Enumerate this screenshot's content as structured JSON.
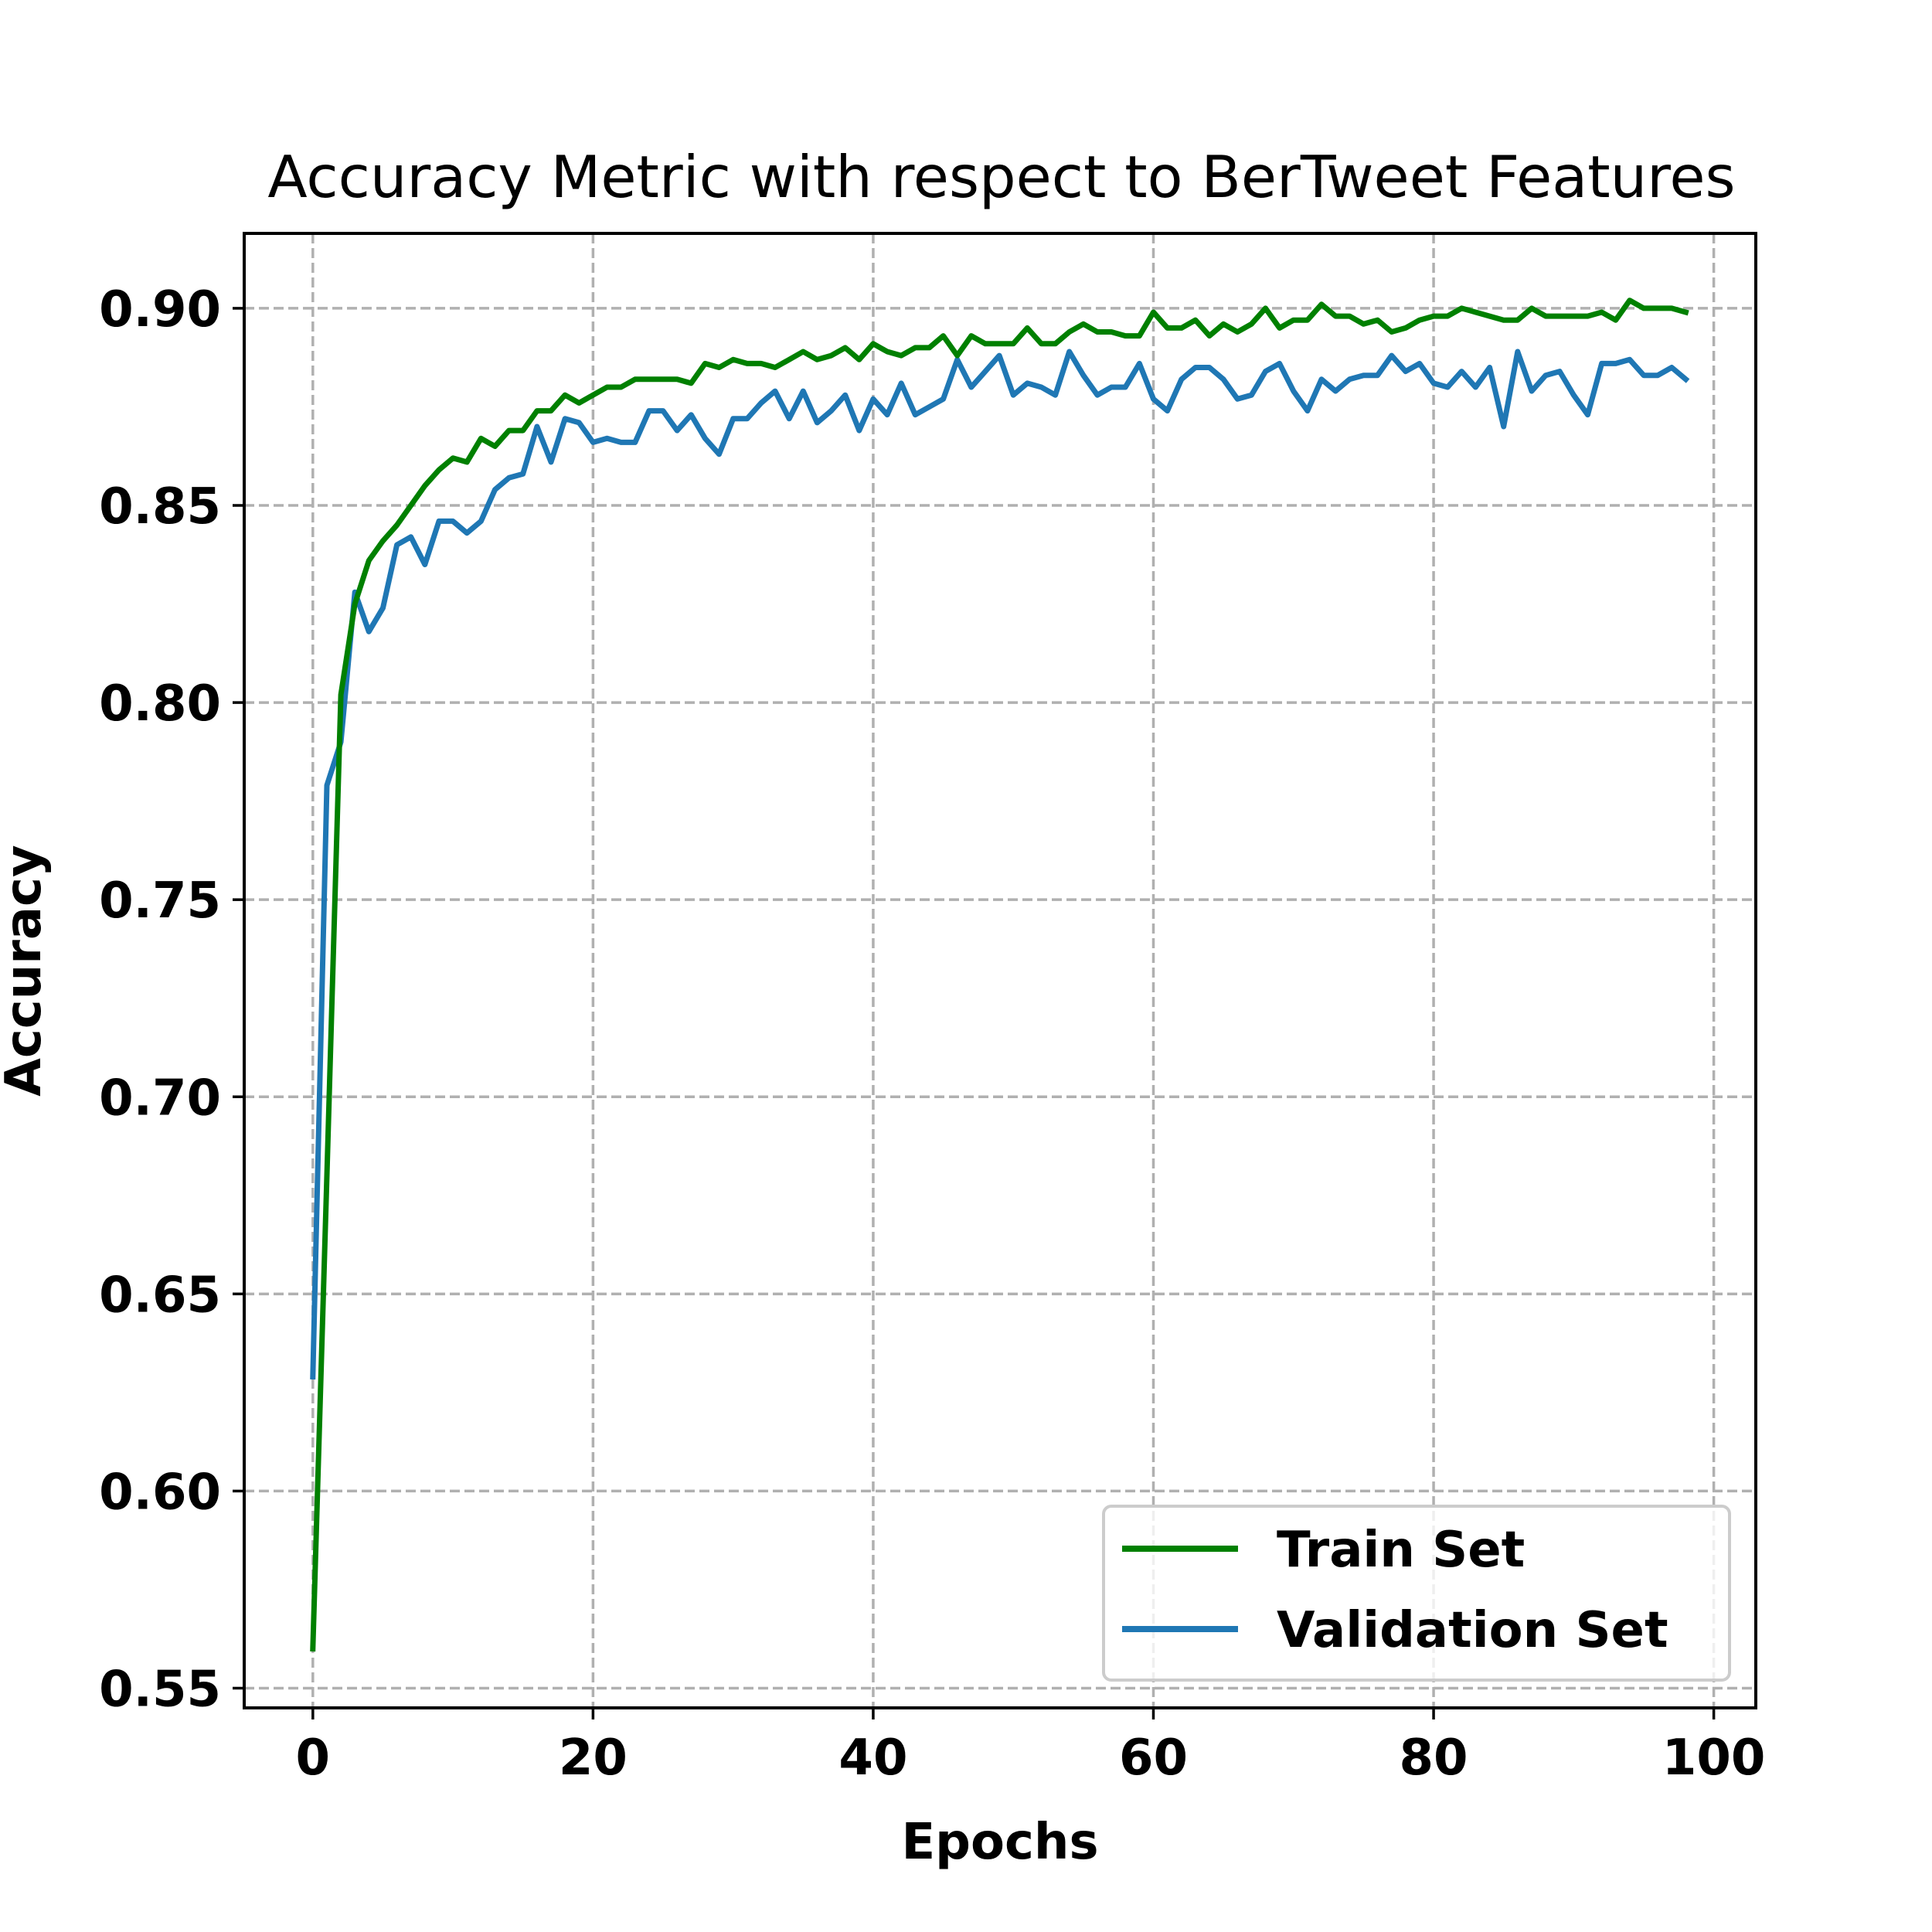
{
  "chart_data": {
    "type": "line",
    "title": "Accuracy Metric with respect to BerTweet Features",
    "xlabel": "Epochs",
    "ylabel": "Accuracy",
    "xlim": [
      -4.9,
      103
    ],
    "ylim": [
      0.545,
      0.919
    ],
    "xticks": [
      0,
      20,
      40,
      60,
      80,
      100
    ],
    "xtick_labels": [
      "0",
      "20",
      "40",
      "60",
      "80",
      "100"
    ],
    "yticks": [
      0.55,
      0.6,
      0.65,
      0.7,
      0.75,
      0.8,
      0.85,
      0.9
    ],
    "ytick_labels": [
      "0.55",
      "0.60",
      "0.65",
      "0.70",
      "0.75",
      "0.80",
      "0.85",
      "0.90"
    ],
    "grid": true,
    "legend_position": "bottom-right",
    "x": [
      0,
      1,
      2,
      3,
      4,
      5,
      6,
      7,
      8,
      9,
      10,
      11,
      12,
      13,
      14,
      15,
      16,
      17,
      18,
      19,
      20,
      21,
      22,
      23,
      24,
      25,
      26,
      27,
      28,
      29,
      30,
      31,
      32,
      33,
      34,
      35,
      36,
      37,
      38,
      39,
      40,
      41,
      42,
      43,
      44,
      45,
      46,
      47,
      48,
      49,
      50,
      51,
      52,
      53,
      54,
      55,
      56,
      57,
      58,
      59,
      60,
      61,
      62,
      63,
      64,
      65,
      66,
      67,
      68,
      69,
      70,
      71,
      72,
      73,
      74,
      75,
      76,
      77,
      78,
      79,
      80,
      81,
      82,
      83,
      84,
      85,
      86,
      87,
      88,
      89,
      90,
      91,
      92,
      93,
      94,
      95,
      96,
      97,
      98
    ],
    "series": [
      {
        "name": "Train Set",
        "color": "#008000",
        "values": [
          0.56,
          0.68,
          0.802,
          0.825,
          0.836,
          0.841,
          0.845,
          0.85,
          0.855,
          0.859,
          0.862,
          0.861,
          0.867,
          0.865,
          0.869,
          0.869,
          0.874,
          0.874,
          0.878,
          0.876,
          0.878,
          0.88,
          0.88,
          0.882,
          0.882,
          0.882,
          0.882,
          0.881,
          0.886,
          0.885,
          0.887,
          0.886,
          0.886,
          0.885,
          0.887,
          0.889,
          0.887,
          0.888,
          0.89,
          0.887,
          0.891,
          0.889,
          0.888,
          0.89,
          0.89,
          0.893,
          0.888,
          0.893,
          0.891,
          0.891,
          0.891,
          0.895,
          0.891,
          0.891,
          0.894,
          0.896,
          0.894,
          0.894,
          0.893,
          0.893,
          0.899,
          0.895,
          0.895,
          0.897,
          0.893,
          0.896,
          0.894,
          0.896,
          0.9,
          0.895,
          0.897,
          0.897,
          0.901,
          0.898,
          0.898,
          0.896,
          0.897,
          0.894,
          0.895,
          0.897,
          0.898,
          0.898,
          0.9,
          0.899,
          0.898,
          0.897,
          0.897,
          0.9,
          0.898,
          0.898,
          0.898,
          0.898,
          0.899,
          0.897,
          0.902,
          0.9,
          0.9,
          0.9,
          0.899
        ]
      },
      {
        "name": "Validation Set",
        "color": "#1f77b4",
        "values": [
          0.629,
          0.779,
          0.79,
          0.828,
          0.818,
          0.824,
          0.84,
          0.842,
          0.835,
          0.846,
          0.846,
          0.843,
          0.846,
          0.854,
          0.857,
          0.858,
          0.87,
          0.861,
          0.872,
          0.871,
          0.866,
          0.867,
          0.866,
          0.866,
          0.874,
          0.874,
          0.869,
          0.873,
          0.867,
          0.863,
          0.872,
          0.872,
          0.876,
          0.879,
          0.872,
          0.879,
          0.871,
          0.874,
          0.878,
          0.869,
          0.877,
          0.873,
          0.881,
          0.873,
          0.875,
          0.877,
          0.887,
          0.88,
          0.884,
          0.888,
          0.878,
          0.881,
          0.88,
          0.878,
          0.889,
          0.883,
          0.878,
          0.88,
          0.88,
          0.886,
          0.877,
          0.874,
          0.882,
          0.885,
          0.885,
          0.882,
          0.877,
          0.878,
          0.884,
          0.886,
          0.879,
          0.874,
          0.882,
          0.879,
          0.882,
          0.883,
          0.883,
          0.888,
          0.884,
          0.886,
          0.881,
          0.88,
          0.884,
          0.88,
          0.885,
          0.87,
          0.889,
          0.879,
          0.883,
          0.884,
          0.878,
          0.873,
          0.886,
          0.886,
          0.887,
          0.883,
          0.883,
          0.885,
          0.882
        ]
      }
    ]
  }
}
